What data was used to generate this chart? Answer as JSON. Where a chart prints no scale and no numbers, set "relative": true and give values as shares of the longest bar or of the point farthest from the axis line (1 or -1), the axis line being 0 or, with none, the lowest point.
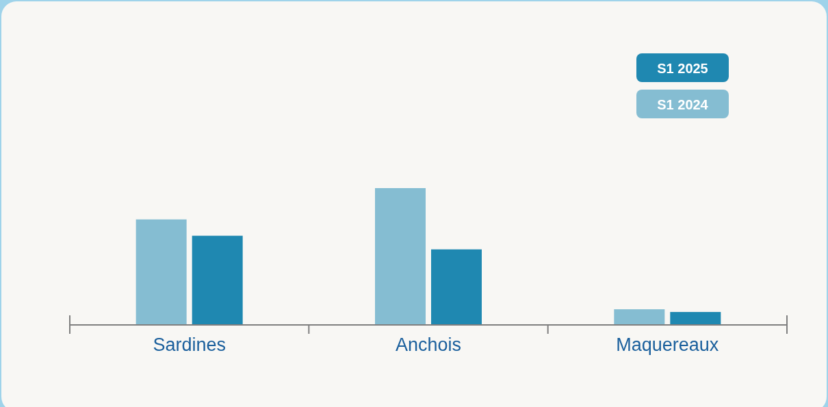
{
  "chart_data": {
    "type": "bar",
    "relative": true,
    "categories": [
      "Sardines",
      "Anchois",
      "Maquereaux"
    ],
    "series": [
      {
        "name": "S1 2024",
        "color": "#85bdd2",
        "values": [
          0.77,
          1,
          0.11
        ]
      },
      {
        "name": "S1 2025",
        "color": "#1f88b1",
        "values": [
          0.65,
          0.55,
          0.09
        ]
      }
    ],
    "legend": "top right",
    "grid": false
  }
}
